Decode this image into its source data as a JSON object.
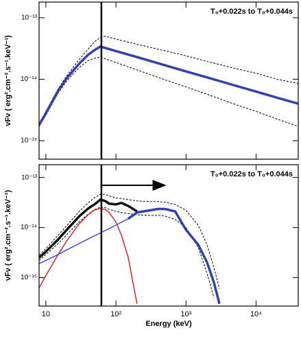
{
  "chart_data": [
    {
      "type": "line",
      "xlog": true,
      "ylog": true,
      "ylabel": "νFν ( erg².cm⁻².s⁻¹.keV⁻¹)",
      "annotation": "T₀+0.022s to T₀+0.044s",
      "xlim": [
        8,
        40000
      ],
      "ylim": [
        5e-16,
        1.8e-13
      ],
      "xticks": [
        10,
        100,
        1000,
        10000
      ],
      "yticks": [
        {
          "value": 1e-13,
          "label": "10⁻¹³"
        },
        {
          "value": 1e-14,
          "label": "10⁻¹⁴"
        },
        {
          "value": 1e-15,
          "label": "10⁻¹⁵"
        }
      ],
      "vline": 62,
      "x": [
        8,
        10,
        15,
        20,
        30,
        40,
        50,
        60,
        70,
        100,
        200,
        500,
        1000,
        2000,
        5000,
        10000,
        20000,
        40000
      ],
      "series": [
        {
          "color": "#000000",
          "dash": true,
          "width": 1,
          "values": [
            1.9e-15,
            3e-15,
            7e-15,
            1.15e-14,
            2.1e-14,
            3.1e-14,
            4.1e-14,
            4.8e-14,
            5e-14,
            4.5e-14,
            3.7e-14,
            2.9e-14,
            2.4e-14,
            1.95e-14,
            1.5e-14,
            1.25e-14,
            1e-14,
            8.5e-15
          ]
        },
        {
          "color": "#000000",
          "dash": true,
          "width": 1,
          "values": [
            1.7e-15,
            2.6e-15,
            6e-15,
            9.5e-15,
            1.55e-14,
            2e-14,
            2.2e-14,
            2.3e-14,
            2.16e-14,
            1.87e-14,
            1.42e-14,
            9.8e-15,
            7.5e-15,
            5.7e-15,
            3.9e-15,
            3e-15,
            2.25e-15,
            1.7e-15
          ]
        },
        {
          "color": "#3340b0",
          "dash": false,
          "width": 3.5,
          "values": [
            1.8e-15,
            2.8e-15,
            6.5e-15,
            1.05e-14,
            1.8e-14,
            2.5e-14,
            3e-14,
            3.4e-14,
            3.23e-14,
            2.87e-14,
            2.29e-14,
            1.69e-14,
            1.34e-14,
            1.07e-14,
            7.9e-15,
            6.3e-15,
            5e-15,
            4e-15
          ]
        }
      ]
    },
    {
      "type": "line",
      "xlog": true,
      "ylog": true,
      "ylabel": "νFν ( erg².cm⁻².s⁻¹.keV⁻¹)",
      "xlabel": "Energy (keV)",
      "annotation": "T₀+0.022s to T₀+0.044s",
      "xlim": [
        8,
        40000
      ],
      "ylim": [
        2.7e-16,
        1.8e-13
      ],
      "xticks": [
        10,
        {
          "value": 100,
          "label": "10²"
        },
        {
          "value": 1000,
          "label": "10³"
        },
        {
          "value": 10000,
          "label": "10⁴"
        }
      ],
      "yticks": [
        {
          "value": 1e-13,
          "label": "10⁻¹³"
        },
        {
          "value": 1e-14,
          "label": "10⁻¹⁴"
        },
        {
          "value": 1e-15,
          "label": "10⁻¹⁵"
        }
      ],
      "vline": 62,
      "arrow": [
        62,
        500
      ],
      "x": [
        8,
        10,
        15,
        20,
        30,
        40,
        50,
        60,
        70,
        80,
        100,
        120,
        150,
        200,
        300,
        400,
        500,
        700,
        1000,
        1500,
        2000,
        2500,
        3000
      ],
      "series": [
        {
          "color": "#000000",
          "dash": true,
          "width": 1,
          "values": [
            2.8e-15,
            3.8e-15,
            7e-15,
            1.1e-14,
            2.1e-14,
            3.1e-14,
            4e-14,
            4.6e-14,
            4.6e-14,
            4.3e-14,
            3.9e-14,
            3.8e-14,
            3.6e-14,
            3.4e-14,
            3.3e-14,
            3.3e-14,
            3.2e-14,
            2.9e-14,
            2.2e-14,
            1.1e-14,
            4.5e-15,
            1.6e-15,
            6e-16
          ]
        },
        {
          "color": "#000000",
          "dash": true,
          "width": 1,
          "values": [
            2.2e-15,
            2.9e-15,
            4.8e-15,
            7.3e-15,
            1.3e-14,
            1.85e-14,
            2.3e-14,
            2.55e-14,
            2.5e-14,
            2.3e-14,
            2.1e-14,
            2e-14,
            1.9e-14,
            1.8e-14,
            1.75e-14,
            1.75e-14,
            1.7e-14,
            1.45e-14,
            1e-14,
            4e-15,
            1.2e-15,
            4e-16,
            null
          ]
        },
        {
          "color": "#e8202a",
          "dash": false,
          "width": 1.5,
          "values": [
            6.2e-16,
            1.1e-15,
            2.9e-15,
            5.5e-15,
            1.2e-14,
            1.8e-14,
            2.25e-14,
            2.4e-14,
            2.3e-14,
            2e-14,
            1.3e-14,
            7e-15,
            2.5e-15,
            3e-16,
            null,
            null,
            null,
            null,
            null,
            null,
            null,
            null,
            null
          ]
        },
        {
          "color": "#3a4fe0",
          "dash": false,
          "width": 1.5,
          "values": [
            1.9e-15,
            2.2e-15,
            2.9e-15,
            3.6e-15,
            4.8e-15,
            5.9e-15,
            6.9e-15,
            7.8e-15,
            8.7e-15,
            9.5e-15,
            1.12e-14,
            1.28e-14,
            1.5e-14,
            2e-14,
            2.2e-14,
            null,
            null,
            null,
            null,
            null,
            null,
            null,
            null
          ]
        },
        {
          "color": "#3340b0",
          "dash": false,
          "width": 3.5,
          "values": [
            null,
            null,
            null,
            null,
            null,
            null,
            null,
            null,
            null,
            null,
            null,
            null,
            1.5e-14,
            2e-14,
            2.2e-14,
            2.35e-14,
            2.35e-14,
            2.1e-14,
            9e-15,
            4.5e-15,
            2e-15,
            8e-16,
            3e-16
          ]
        },
        {
          "color": "#111111",
          "dash": false,
          "width": 3.5,
          "values": [
            2.5e-15,
            3.3e-15,
            5.8e-15,
            9.1e-15,
            1.68e-14,
            2.39e-14,
            2.94e-14,
            3.6e-14,
            3.4e-14,
            3e-14,
            2.9e-14,
            3.1e-14,
            2.7e-14,
            2.1e-14,
            null,
            null,
            null,
            null,
            null,
            null,
            null,
            null,
            null
          ]
        }
      ]
    }
  ]
}
